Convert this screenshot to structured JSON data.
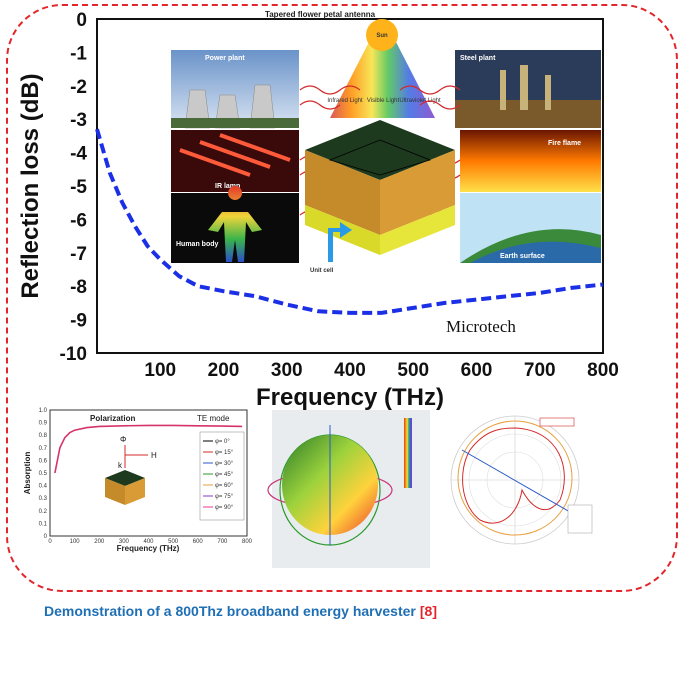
{
  "colors": {
    "frame": "#e3262b",
    "curve": "#1a2fe6",
    "caption": "#1f6fb5",
    "ref": "#e3262b",
    "absorption": "#d6336c"
  },
  "main_chart": {
    "chart_data": {
      "type": "line",
      "title": "",
      "xlabel": "Frequency (THz)",
      "ylabel": "Reflection loss (dB)",
      "xlim": [
        0,
        800
      ],
      "ylim": [
        -10,
        0
      ],
      "x_ticks": [
        "100",
        "200",
        "300",
        "400",
        "500",
        "600",
        "700",
        "800"
      ],
      "y_ticks": [
        "0",
        "-1",
        "-2",
        "-3",
        "-4",
        "-5",
        "-6",
        "-7",
        "-8",
        "-9",
        "-10"
      ],
      "series": [
        {
          "style": "dashed",
          "x": [
            0,
            20,
            40,
            60,
            80,
            100,
            130,
            160,
            200,
            250,
            300,
            350,
            400,
            450,
            500,
            550,
            600,
            650,
            700,
            750,
            800
          ],
          "y": [
            -3.3,
            -4.6,
            -5.5,
            -6.2,
            -6.8,
            -7.2,
            -7.7,
            -8.0,
            -8.15,
            -8.3,
            -8.55,
            -8.75,
            -8.8,
            -8.8,
            -8.65,
            -8.5,
            -8.4,
            -8.3,
            -8.2,
            -8.05,
            -7.95
          ]
        }
      ]
    },
    "inset": {
      "title": "Tapered flower petal antenna",
      "sun": "Sun",
      "spectrum": [
        "Infrared Light",
        "Visible Light",
        "Ultraviolet Light"
      ],
      "panels": [
        "Power plant",
        "Steel plant",
        "IR lamp",
        "Fire flame",
        "Human body",
        "Earth surface"
      ],
      "unit_cell": "Unit cell"
    },
    "watermark": "Microtech"
  },
  "absorption_chart": {
    "chart_data": {
      "type": "line",
      "xlabel": "Frequency (THz)",
      "ylabel": "Absorption",
      "xlim": [
        0,
        800
      ],
      "ylim": [
        0,
        1.0
      ],
      "x_ticks": [
        "0",
        "100",
        "200",
        "300",
        "400",
        "500",
        "600",
        "700",
        "800"
      ],
      "y_ticks": [
        "0",
        "0.1",
        "0.2",
        "0.3",
        "0.4",
        "0.5",
        "0.6",
        "0.7",
        "0.8",
        "0.9",
        "1.0"
      ],
      "series": [
        {
          "x": [
            20,
            40,
            60,
            80,
            100,
            150,
            200,
            300,
            400,
            500,
            600,
            700,
            780
          ],
          "y": [
            0.5,
            0.7,
            0.78,
            0.82,
            0.84,
            0.86,
            0.87,
            0.875,
            0.878,
            0.878,
            0.875,
            0.872,
            0.87
          ]
        }
      ]
    },
    "annotations": {
      "polarization": "Polarization",
      "mode": "TE mode",
      "phi": "Φ",
      "h": "H",
      "k": "k"
    },
    "legend": [
      "φ= 0°",
      "φ= 15°",
      "φ= 30°",
      "φ= 45°",
      "φ= 60°",
      "φ= 75°",
      "φ= 90°"
    ]
  },
  "caption": {
    "text": "Demonstration of a 800Thz broadband energy harvester",
    "ref": "[8]"
  }
}
